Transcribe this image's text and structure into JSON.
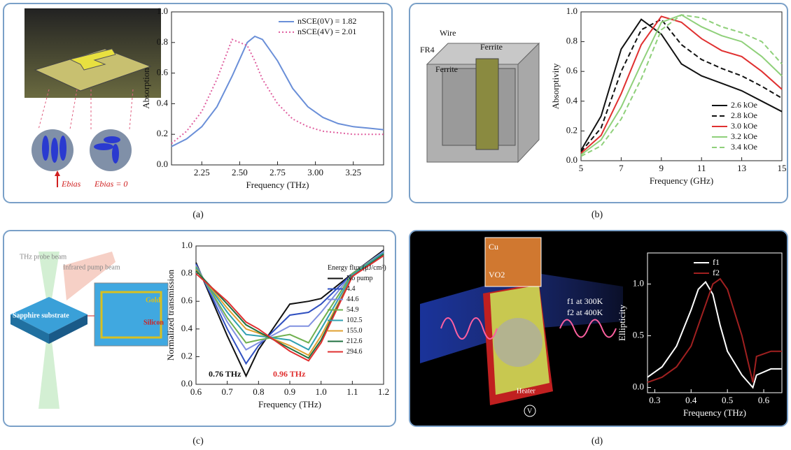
{
  "chart_data": [
    {
      "type": "line",
      "label": "(a)",
      "xlabel": "Frequency (THz)",
      "ylabel": "Absorption",
      "xlim": [
        2.05,
        3.45
      ],
      "xticks": [
        2.25,
        {
          "value": 2.5,
          "label": "2.50"
        },
        2.75,
        {
          "value": 3,
          "label": "3.00"
        },
        3.25
      ],
      "ylim": [
        0,
        1
      ],
      "yticks": [
        {
          "value": 0,
          "label": "0.0"
        },
        0.2,
        0.4,
        0.6,
        0.8,
        {
          "value": 1,
          "label": "1.0"
        }
      ],
      "legend": "upper right",
      "x": [
        2.05,
        2.15,
        2.25,
        2.35,
        2.45,
        2.55,
        2.6,
        2.65,
        2.75,
        2.85,
        2.95,
        3.05,
        3.15,
        3.25,
        3.35,
        3.45
      ],
      "series": [
        {
          "name": "nSCE(0V) = 1.82",
          "color": "#6a8fd8",
          "style": "solid",
          "values": [
            0.12,
            0.17,
            0.25,
            0.38,
            0.58,
            0.8,
            0.84,
            0.82,
            0.68,
            0.5,
            0.38,
            0.31,
            0.27,
            0.25,
            0.24,
            0.23
          ]
        },
        {
          "name": "nSCE(4V) = 2.01",
          "color": "#e060a0",
          "style": "dotted",
          "values": [
            0.14,
            0.22,
            0.35,
            0.56,
            0.82,
            0.78,
            0.68,
            0.56,
            0.4,
            0.3,
            0.25,
            0.22,
            0.21,
            0.2,
            0.2,
            0.2
          ]
        }
      ],
      "annotations": [
        "Ebias",
        "Ebias = 0"
      ]
    },
    {
      "type": "line",
      "label": "(b)",
      "xlabel": "Frequency (GHz)",
      "ylabel": "Absorptivity",
      "xlim": [
        5,
        15
      ],
      "xticks": [
        5,
        7,
        9,
        11,
        13,
        15
      ],
      "ylim": [
        0,
        1
      ],
      "yticks": [
        {
          "value": 0,
          "label": "0.0"
        },
        0.2,
        0.4,
        0.6,
        0.8,
        {
          "value": 1,
          "label": "1.0"
        }
      ],
      "legend": "lower right",
      "x": [
        5,
        6,
        7,
        8,
        9,
        10,
        11,
        12,
        13,
        14,
        15
      ],
      "series": [
        {
          "name": "2.6 kOe",
          "color": "#111111",
          "style": "solid",
          "values": [
            0.07,
            0.3,
            0.75,
            0.95,
            0.85,
            0.65,
            0.57,
            0.52,
            0.47,
            0.4,
            0.33
          ]
        },
        {
          "name": "2.8 kOe",
          "color": "#111111",
          "style": "dashed",
          "values": [
            0.06,
            0.22,
            0.6,
            0.88,
            0.95,
            0.78,
            0.68,
            0.62,
            0.57,
            0.5,
            0.42
          ]
        },
        {
          "name": "3.0 kOe",
          "color": "#e03030",
          "style": "solid",
          "values": [
            0.05,
            0.17,
            0.45,
            0.78,
            0.97,
            0.93,
            0.82,
            0.74,
            0.7,
            0.6,
            0.48
          ]
        },
        {
          "name": "3.2 kOe",
          "color": "#8fd07a",
          "style": "solid",
          "values": [
            0.04,
            0.14,
            0.36,
            0.65,
            0.93,
            0.98,
            0.9,
            0.84,
            0.8,
            0.7,
            0.57
          ]
        },
        {
          "name": "3.4 kOe",
          "color": "#8fd07a",
          "style": "dashed",
          "values": [
            0.03,
            0.1,
            0.28,
            0.55,
            0.88,
            0.98,
            0.96,
            0.9,
            0.86,
            0.8,
            0.65
          ]
        }
      ],
      "annotations": [
        "Wire",
        "FR4",
        "Ferrite",
        "Ferrite"
      ]
    },
    {
      "type": "line",
      "label": "(c)",
      "xlabel": "Frequency (THz)",
      "ylabel": "Normalized transmission",
      "xlim": [
        0.6,
        1.2
      ],
      "xticks": [
        0.6,
        0.7,
        0.8,
        0.9,
        {
          "value": 1,
          "label": "1.0"
        },
        1.1,
        1.2
      ],
      "ylim": [
        0,
        1
      ],
      "yticks": [
        {
          "value": 0,
          "label": "0.0"
        },
        0.2,
        0.4,
        0.6,
        0.8,
        {
          "value": 1,
          "label": "1.0"
        }
      ],
      "legend": "right",
      "legend_title": "Energy flux (μJ/cm²)",
      "x": [
        0.6,
        0.7,
        0.76,
        0.8,
        0.9,
        0.96,
        1.0,
        1.1,
        1.2
      ],
      "series": [
        {
          "name": "No pump",
          "color": "#111111",
          "style": "solid",
          "values": [
            0.88,
            0.35,
            0.06,
            0.25,
            0.58,
            0.6,
            0.62,
            0.8,
            0.97
          ]
        },
        {
          "name": "4.4",
          "color": "#3050c0",
          "style": "solid",
          "values": [
            0.87,
            0.4,
            0.15,
            0.28,
            0.5,
            0.52,
            0.58,
            0.8,
            0.96
          ]
        },
        {
          "name": "44.6",
          "color": "#8090e0",
          "style": "solid",
          "values": [
            0.86,
            0.45,
            0.25,
            0.3,
            0.42,
            0.42,
            0.52,
            0.8,
            0.96
          ]
        },
        {
          "name": "54.9",
          "color": "#70b050",
          "style": "solid",
          "values": [
            0.85,
            0.48,
            0.3,
            0.32,
            0.36,
            0.3,
            0.45,
            0.8,
            0.95
          ]
        },
        {
          "name": "102.5",
          "color": "#30a0b0",
          "style": "solid",
          "values": [
            0.84,
            0.52,
            0.36,
            0.35,
            0.32,
            0.25,
            0.4,
            0.79,
            0.95
          ]
        },
        {
          "name": "155.0",
          "color": "#e0a030",
          "style": "solid",
          "values": [
            0.83,
            0.55,
            0.4,
            0.37,
            0.28,
            0.21,
            0.35,
            0.78,
            0.94
          ]
        },
        {
          "name": "212.6",
          "color": "#207040",
          "style": "solid",
          "values": [
            0.82,
            0.58,
            0.43,
            0.38,
            0.26,
            0.19,
            0.32,
            0.78,
            0.94
          ]
        },
        {
          "name": "294.6",
          "color": "#e03030",
          "style": "solid",
          "values": [
            0.8,
            0.6,
            0.45,
            0.4,
            0.24,
            0.17,
            0.3,
            0.78,
            0.93
          ]
        }
      ],
      "annotations": [
        "0.76 THz",
        "0.96 THz",
        "THz probe beam",
        "Infrared pump beam",
        "Sapphire substrate",
        "Gold",
        "Silicon"
      ]
    },
    {
      "type": "line",
      "label": "(d)",
      "xlabel": "Frequency (THz)",
      "ylabel": "Ellipticity",
      "xlim": [
        0.28,
        0.65
      ],
      "xticks": [
        0.3,
        0.4,
        0.5,
        0.6
      ],
      "ylim": [
        -0.05,
        1.3
      ],
      "yticks": [
        {
          "value": 0,
          "label": "0.0"
        },
        0.5,
        {
          "value": 1,
          "label": "1.0"
        }
      ],
      "legend": "upper center",
      "x": [
        0.28,
        0.32,
        0.36,
        0.4,
        0.42,
        0.44,
        0.46,
        0.48,
        0.5,
        0.54,
        0.57,
        0.58,
        0.62,
        0.65
      ],
      "series": [
        {
          "name": "f1",
          "color": "#ffffff",
          "style": "solid",
          "values": [
            0.1,
            0.2,
            0.4,
            0.75,
            0.95,
            1.02,
            0.9,
            0.6,
            0.35,
            0.12,
            0,
            0.12,
            0.18,
            0.18
          ]
        },
        {
          "name": "f2",
          "color": "#a02020",
          "style": "solid",
          "values": [
            0.05,
            0.1,
            0.2,
            0.4,
            0.6,
            0.8,
            1,
            1.05,
            0.95,
            0.5,
            0.05,
            0.3,
            0.35,
            0.35
          ]
        }
      ],
      "annotations": [
        "f1 at 300K",
        "f2 at 400K",
        "Cu",
        "VO2",
        "Heater",
        "V"
      ]
    }
  ]
}
